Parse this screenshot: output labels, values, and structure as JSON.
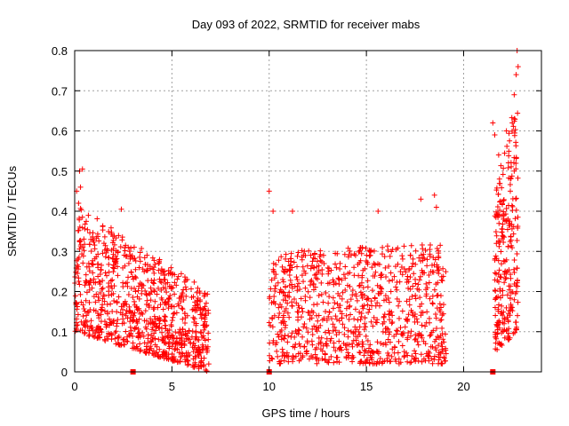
{
  "chart_data": {
    "type": "scatter",
    "title": "Day 093 of 2022, SRMTID for receiver mabs",
    "xlabel": "GPS time / hours",
    "ylabel": "SRMTID / TECUs",
    "xlim": [
      0,
      24
    ],
    "ylim": [
      0,
      0.8
    ],
    "xticks": [
      0,
      5,
      10,
      15,
      20
    ],
    "yticks": [
      0,
      0.1,
      0.2,
      0.3,
      0.4,
      0.5,
      0.6,
      0.7,
      0.8
    ],
    "grid": true,
    "marker": "plus",
    "color": "#ff0000",
    "gap_markers_x": [
      3.0,
      10.0,
      21.5
    ],
    "clusters": [
      {
        "x_start": 0.0,
        "x_end": 6.9,
        "count": 900,
        "upper_start": 0.42,
        "upper_end": 0.2,
        "lower_start": 0.1,
        "lower_end": 0.0
      },
      {
        "x_start": 10.0,
        "x_end": 19.1,
        "count": 900,
        "upper_start": 0.3,
        "upper_end": 0.32,
        "lower_start": 0.02,
        "lower_end": 0.02
      },
      {
        "x_start": 21.6,
        "x_end": 22.8,
        "count": 260,
        "upper_start": 0.45,
        "upper_end": 0.7,
        "lower_start": 0.05,
        "lower_end": 0.1
      }
    ],
    "points": [
      [
        0.1,
        0.45
      ],
      [
        0.25,
        0.5
      ],
      [
        0.4,
        0.505
      ],
      [
        0.3,
        0.46
      ],
      [
        0.2,
        0.42
      ],
      [
        2.4,
        0.405
      ],
      [
        10.0,
        0.45
      ],
      [
        10.2,
        0.4
      ],
      [
        11.2,
        0.4
      ],
      [
        15.6,
        0.4
      ],
      [
        17.8,
        0.43
      ],
      [
        18.5,
        0.44
      ],
      [
        18.6,
        0.41
      ],
      [
        21.5,
        0.62
      ],
      [
        21.6,
        0.59
      ],
      [
        21.8,
        0.54
      ],
      [
        22.2,
        0.6
      ],
      [
        22.5,
        0.62
      ],
      [
        22.6,
        0.69
      ],
      [
        22.7,
        0.74
      ],
      [
        22.8,
        0.76
      ],
      [
        22.75,
        0.8
      ],
      [
        22.6,
        0.5
      ],
      [
        22.4,
        0.45
      ],
      [
        22.3,
        0.08
      ]
    ]
  }
}
